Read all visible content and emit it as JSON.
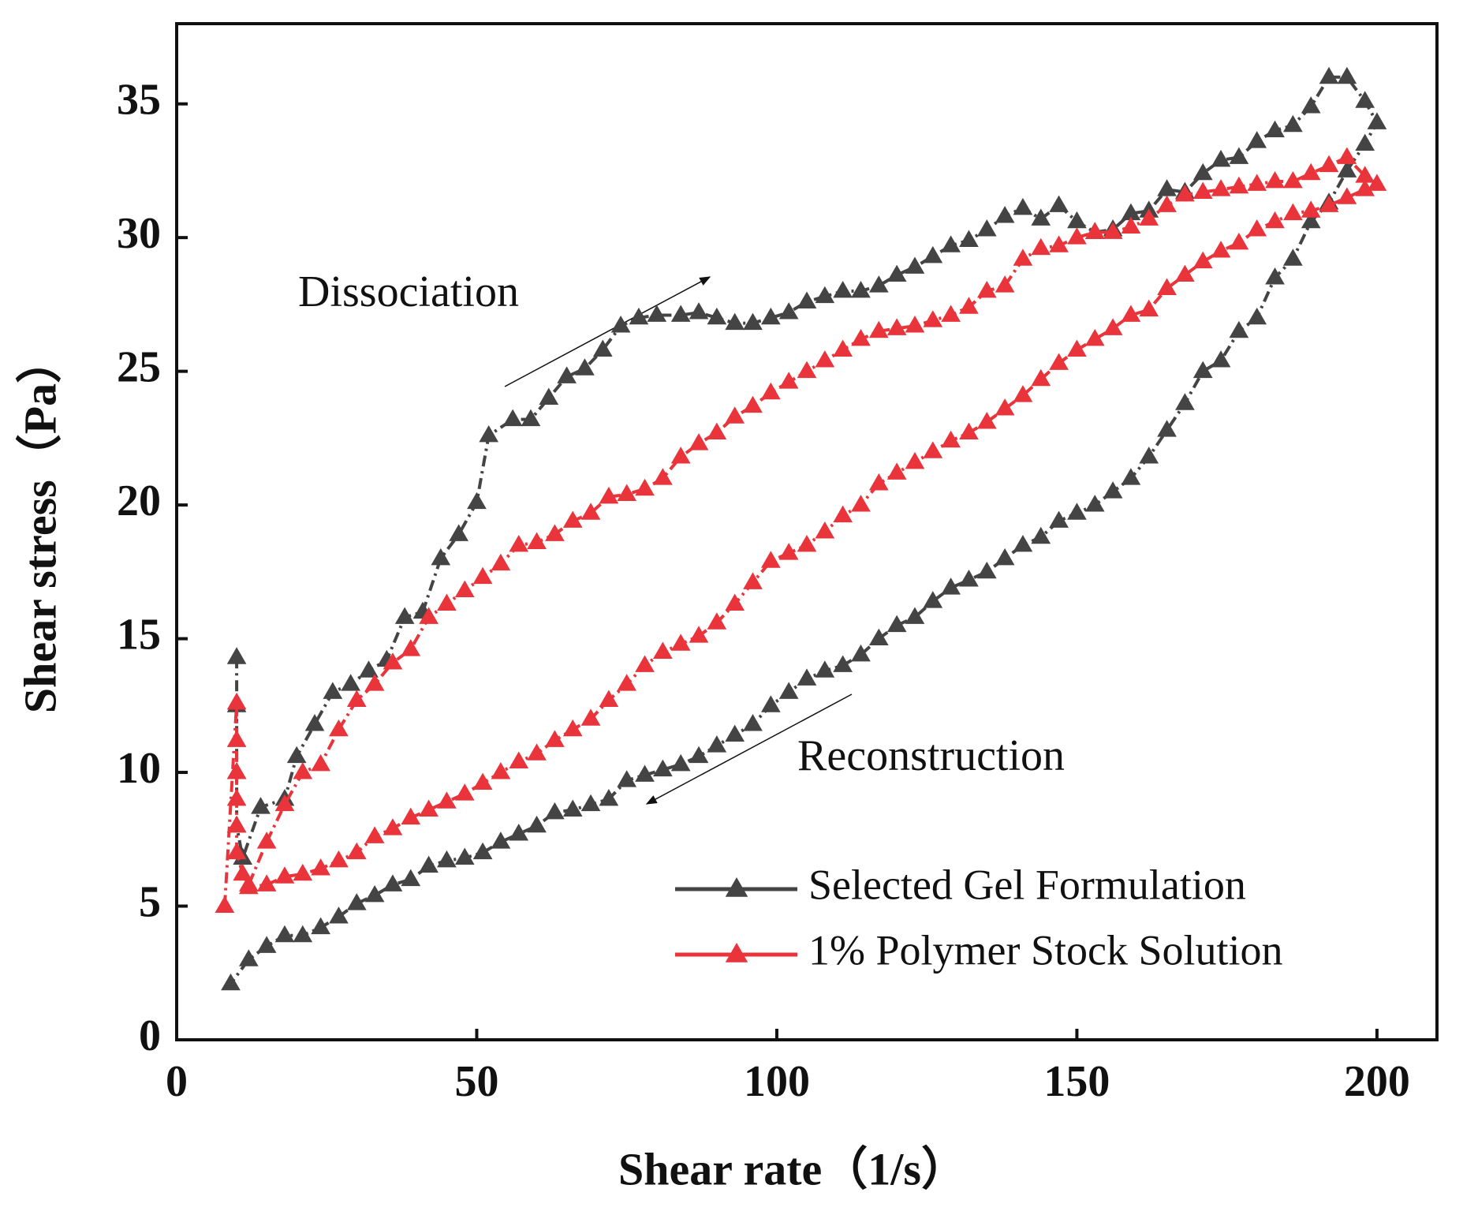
{
  "chart_data": {
    "type": "line",
    "x_label": "Shear rate（1/s）",
    "y_label": "Shear stress（Pa）",
    "annotations": [
      "Dissociation",
      "Reconstruction"
    ],
    "xlim": [
      0,
      210
    ],
    "ylim": [
      0,
      38
    ],
    "xticks": [
      0,
      50,
      100,
      150,
      200
    ],
    "yticks": [
      0,
      5,
      10,
      15,
      20,
      25,
      30,
      35
    ],
    "legend": "lower right",
    "series": [
      {
        "name": "Selected Gel Formulation",
        "color": "#444444",
        "x": [
          10,
          10,
          10,
          10,
          11,
          14,
          18,
          20,
          23,
          26,
          29,
          32,
          35,
          38,
          41,
          44,
          47,
          50,
          52,
          56,
          59,
          62,
          65,
          68,
          71,
          74,
          77,
          80,
          84,
          87,
          90,
          93,
          96,
          99,
          102,
          105,
          108,
          111,
          114,
          117,
          120,
          123,
          126,
          129,
          132,
          135,
          138,
          141,
          144,
          147,
          150,
          153,
          156,
          159,
          162,
          165,
          168,
          171,
          174,
          177,
          180,
          183,
          186,
          189,
          192,
          195,
          198,
          200,
          198,
          195,
          192,
          189,
          186,
          183,
          180,
          177,
          174,
          171,
          168,
          165,
          162,
          159,
          156,
          153,
          150,
          147,
          144,
          141,
          138,
          135,
          132,
          129,
          126,
          123,
          120,
          117,
          114,
          111,
          108,
          105,
          102,
          99,
          96,
          93,
          90,
          87,
          84,
          81,
          78,
          75,
          72,
          69,
          66,
          63,
          60,
          57,
          54,
          51,
          48,
          45,
          42,
          39,
          36,
          33,
          30,
          27,
          24,
          21,
          18,
          15,
          12,
          9
        ],
        "values": [
          14.3,
          12.5,
          10,
          8,
          6.8,
          8.7,
          9,
          10.6,
          11.8,
          13,
          13.3,
          13.8,
          14.2,
          15.8,
          16,
          18,
          18.9,
          20.1,
          22.6,
          23.2,
          23.2,
          24,
          24.8,
          25.1,
          25.8,
          26.7,
          27,
          27.1,
          27.1,
          27.2,
          27,
          26.8,
          26.8,
          27,
          27.2,
          27.6,
          27.8,
          28,
          28,
          28.2,
          28.6,
          28.9,
          29.3,
          29.7,
          29.9,
          30.3,
          30.8,
          31.1,
          30.7,
          31.2,
          30.6,
          30.2,
          30.3,
          30.9,
          31,
          31.8,
          31.7,
          32.4,
          32.9,
          33,
          33.6,
          34,
          34.2,
          34.9,
          36,
          36,
          35.1,
          34.3,
          33.5,
          32.5,
          31.3,
          30.6,
          29.2,
          28.5,
          27,
          26.5,
          25.4,
          25,
          23.8,
          22.8,
          21.8,
          21,
          20.5,
          20,
          19.7,
          19.4,
          18.8,
          18.5,
          18,
          17.5,
          17.2,
          16.9,
          16.4,
          15.8,
          15.5,
          15,
          14.4,
          14,
          13.8,
          13.5,
          13,
          12.5,
          11.8,
          11.4,
          11,
          10.6,
          10.3,
          10.1,
          9.9,
          9.7,
          9,
          8.8,
          8.6,
          8.5,
          8,
          7.7,
          7.4,
          7,
          6.8,
          6.7,
          6.5,
          6,
          5.8,
          5.4,
          5.1,
          4.6,
          4.2,
          3.9,
          3.9,
          3.5,
          3,
          2.1
        ]
      },
      {
        "name": "1% Polymer Stock Solution",
        "color": "#e8343a",
        "x": [
          8,
          10,
          10,
          10,
          10,
          10,
          10,
          11,
          12,
          15,
          18,
          21,
          24,
          27,
          30,
          33,
          36,
          39,
          42,
          45,
          48,
          51,
          54,
          57,
          60,
          63,
          66,
          69,
          72,
          75,
          78,
          81,
          84,
          87,
          90,
          93,
          96,
          99,
          102,
          105,
          108,
          111,
          114,
          117,
          120,
          123,
          126,
          129,
          132,
          135,
          138,
          141,
          144,
          147,
          150,
          153,
          156,
          159,
          162,
          165,
          168,
          171,
          174,
          177,
          180,
          183,
          186,
          189,
          192,
          195,
          198,
          200,
          198,
          195,
          192,
          189,
          186,
          183,
          180,
          177,
          174,
          171,
          168,
          165,
          162,
          159,
          156,
          153,
          150,
          147,
          144,
          141,
          138,
          135,
          132,
          129,
          126,
          123,
          120,
          117,
          114,
          111,
          108,
          105,
          102,
          99,
          96,
          93,
          90,
          87,
          84,
          81,
          78,
          75,
          72,
          69,
          66,
          63,
          60,
          57,
          54,
          51,
          48,
          45,
          42,
          39,
          36,
          33,
          30,
          27,
          24,
          21,
          18,
          15,
          12
        ],
        "values": [
          5,
          12.6,
          11.2,
          10,
          9,
          8,
          7,
          6.2,
          5.8,
          7.4,
          8.8,
          10,
          10.3,
          11.6,
          12.7,
          13.3,
          14.1,
          14.6,
          15.8,
          16.3,
          16.8,
          17.3,
          17.8,
          18.5,
          18.6,
          18.9,
          19.4,
          19.7,
          20.3,
          20.4,
          20.6,
          21,
          21.8,
          22.3,
          22.7,
          23.3,
          23.7,
          24.2,
          24.6,
          25,
          25.4,
          25.8,
          26.2,
          26.5,
          26.6,
          26.7,
          26.9,
          27.1,
          27.4,
          28,
          28.2,
          29.2,
          29.6,
          29.7,
          30,
          30.2,
          30.2,
          30.4,
          30.7,
          31.2,
          31.6,
          31.7,
          31.8,
          31.9,
          32,
          32.1,
          32.1,
          32.4,
          32.7,
          33,
          32.3,
          32,
          31.8,
          31.5,
          31.2,
          31,
          30.9,
          30.6,
          30.3,
          29.8,
          29.5,
          29.1,
          28.6,
          28.1,
          27.3,
          27.1,
          26.6,
          26.2,
          25.8,
          25.3,
          24.7,
          24.1,
          23.6,
          23.1,
          22.7,
          22.4,
          22,
          21.6,
          21.2,
          20.8,
          20,
          19.6,
          19,
          18.5,
          18.2,
          17.9,
          17.1,
          16.3,
          15.6,
          15.1,
          14.8,
          14.5,
          14,
          13.3,
          12.7,
          12,
          11.6,
          11.2,
          10.7,
          10.4,
          10,
          9.6,
          9.2,
          8.9,
          8.6,
          8.3,
          7.9,
          7.6,
          7,
          6.7,
          6.4,
          6.2,
          6.1,
          5.8,
          5.7
        ]
      }
    ]
  }
}
